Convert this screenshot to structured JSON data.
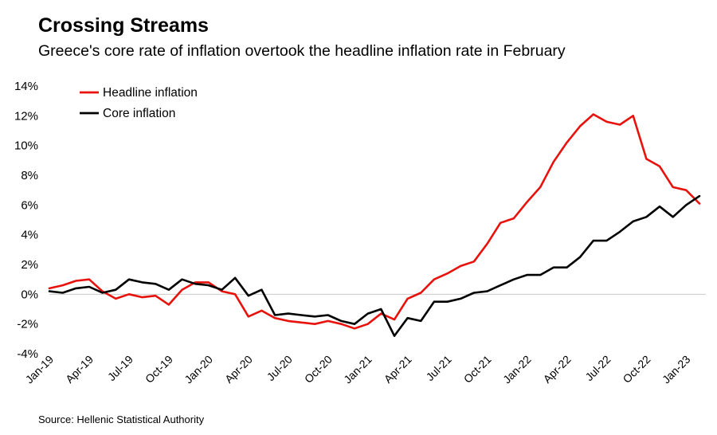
{
  "title": "Crossing Streams",
  "subtitle": "Greece's core rate of inflation overtook the headline inflation rate in February",
  "source": "Source: Hellenic Statistical Authority",
  "chart_data": {
    "type": "line",
    "title": "Crossing Streams",
    "subtitle": "Greece's core rate of inflation overtook the headline inflation rate in February",
    "xlabel": "",
    "ylabel": "",
    "ylim": [
      -4,
      14
    ],
    "yticks": [
      -4,
      -2,
      0,
      2,
      4,
      6,
      8,
      10,
      12,
      14
    ],
    "ytick_labels": [
      "-4%",
      "-2%",
      "0%",
      "2%",
      "4%",
      "6%",
      "8%",
      "10%",
      "12%",
      "14%"
    ],
    "xtick_labels": [
      "Jan-19",
      "Apr-19",
      "Jul-19",
      "Oct-19",
      "Jan-20",
      "Apr-20",
      "Jul-20",
      "Oct-20",
      "Jan-21",
      "Apr-21",
      "Jul-21",
      "Oct-21",
      "Jan-22",
      "Apr-22",
      "Jul-22",
      "Oct-22",
      "Jan-23"
    ],
    "grid": false,
    "legend_position": "top-left",
    "categories": [
      "Jan-19",
      "Feb-19",
      "Mar-19",
      "Apr-19",
      "May-19",
      "Jun-19",
      "Jul-19",
      "Aug-19",
      "Sep-19",
      "Oct-19",
      "Nov-19",
      "Dec-19",
      "Jan-20",
      "Feb-20",
      "Mar-20",
      "Apr-20",
      "May-20",
      "Jun-20",
      "Jul-20",
      "Aug-20",
      "Sep-20",
      "Oct-20",
      "Nov-20",
      "Dec-20",
      "Jan-21",
      "Feb-21",
      "Mar-21",
      "Apr-21",
      "May-21",
      "Jun-21",
      "Jul-21",
      "Aug-21",
      "Sep-21",
      "Oct-21",
      "Nov-21",
      "Dec-21",
      "Jan-22",
      "Feb-22",
      "Mar-22",
      "Apr-22",
      "May-22",
      "Jun-22",
      "Jul-22",
      "Aug-22",
      "Sep-22",
      "Oct-22",
      "Nov-22",
      "Dec-22",
      "Jan-23",
      "Feb-23"
    ],
    "series": [
      {
        "name": "Headline inflation",
        "color": "#e8120c",
        "values": [
          0.4,
          0.6,
          0.9,
          1.0,
          0.2,
          -0.3,
          0.0,
          -0.2,
          -0.1,
          -0.7,
          0.3,
          0.8,
          0.8,
          0.2,
          0.0,
          -1.5,
          -1.1,
          -1.6,
          -1.8,
          -1.9,
          -2.0,
          -1.8,
          -2.0,
          -2.3,
          -2.0,
          -1.3,
          -1.7,
          -0.3,
          0.1,
          1.0,
          1.4,
          1.9,
          2.2,
          3.4,
          4.8,
          5.1,
          6.2,
          7.2,
          8.9,
          10.2,
          11.3,
          12.1,
          11.6,
          11.4,
          12.0,
          9.1,
          8.6,
          7.2,
          7.0,
          6.1
        ]
      },
      {
        "name": "Core inflation",
        "color": "#000000",
        "values": [
          0.2,
          0.1,
          0.4,
          0.5,
          0.1,
          0.3,
          1.0,
          0.8,
          0.7,
          0.3,
          1.0,
          0.7,
          0.6,
          0.3,
          1.1,
          -0.1,
          0.3,
          -1.4,
          -1.3,
          -1.4,
          -1.5,
          -1.4,
          -1.8,
          -2.0,
          -1.3,
          -1.0,
          -2.8,
          -1.6,
          -1.8,
          -0.5,
          -0.5,
          -0.3,
          0.1,
          0.2,
          0.6,
          1.0,
          1.3,
          1.3,
          1.8,
          1.8,
          2.5,
          3.6,
          3.6,
          4.2,
          4.9,
          5.2,
          5.9,
          5.2,
          6.0,
          6.6
        ]
      }
    ]
  }
}
